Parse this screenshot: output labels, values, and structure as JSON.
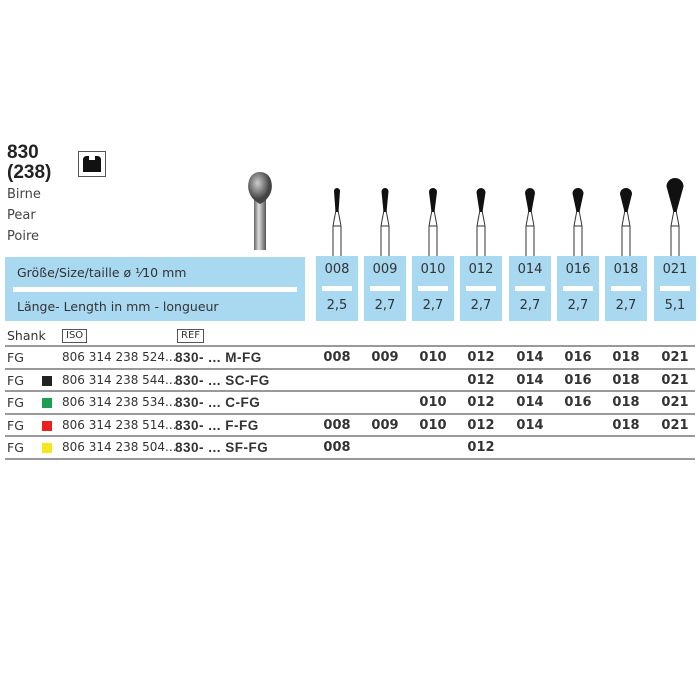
{
  "product": {
    "number": "830",
    "iso_shape": "(238)",
    "names": [
      "Birne",
      "Pear",
      "Poire"
    ],
    "shank_icon": "fg-shank-icon"
  },
  "header": {
    "size_label": "Größe/Size/taille  ø ¹⁄10 mm",
    "length_label": "Länge- Length in mm - longueur"
  },
  "sizes": [
    "008",
    "009",
    "010",
    "012",
    "014",
    "016",
    "018",
    "021"
  ],
  "lengths": [
    "2,5",
    "2,7",
    "2,7",
    "2,7",
    "2,7",
    "2,7",
    "2,7",
    "5,1"
  ],
  "table": {
    "shank_label": "Shank",
    "iso_label": "ISO",
    "ref_label": "REF",
    "rows": [
      {
        "shank": "FG",
        "color": "",
        "iso": "806 314 238 524...",
        "ref": "830- ... M-FG",
        "values": [
          "008",
          "009",
          "010",
          "012",
          "014",
          "016",
          "018",
          "021"
        ]
      },
      {
        "shank": "FG",
        "color": "#222222",
        "iso": "806 314 238 544...",
        "ref": "830- ... SC-FG",
        "values": [
          "",
          "",
          "",
          "012",
          "014",
          "016",
          "018",
          "021"
        ]
      },
      {
        "shank": "FG",
        "color": "#1aa050",
        "iso": "806 314 238 534...",
        "ref": "830- ... C-FG",
        "values": [
          "",
          "",
          "010",
          "012",
          "014",
          "016",
          "018",
          "021"
        ]
      },
      {
        "shank": "FG",
        "color": "#e82020",
        "iso": "806 314 238 514...",
        "ref": "830- ... F-FG",
        "values": [
          "008",
          "009",
          "010",
          "012",
          "014",
          "",
          "018",
          "021"
        ]
      },
      {
        "shank": "FG",
        "color": "#f5e81a",
        "iso": "806 314 238 504...",
        "ref": "830- ... SF-FG",
        "values": [
          "008",
          "",
          "",
          "012",
          "",
          "",
          "",
          ""
        ]
      }
    ]
  }
}
